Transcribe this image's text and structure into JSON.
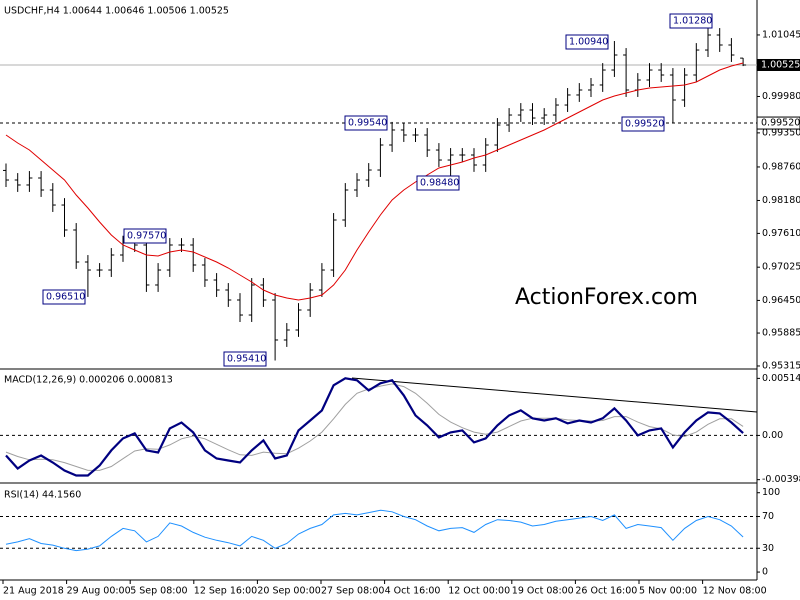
{
  "chart_data": [
    {
      "type": "ohlc",
      "title": "USDCHF,H4 1.00644 1.00646 1.00506 1.00525",
      "watermark": "ActionForex.com",
      "bar_color": "#000000",
      "open": [
        0.987,
        0.98534,
        0.98448,
        0.98569,
        0.98361,
        0.98101,
        0.97669,
        0.97115,
        0.96976,
        0.96976,
        0.97236,
        0.97496,
        0.97409,
        0.96717,
        0.96976,
        0.97409,
        0.97409,
        0.97063,
        0.96803,
        0.9663,
        0.96457,
        0.96197,
        0.96717,
        0.96457,
        0.95765,
        0.95938,
        0.96284,
        0.9663,
        0.96976,
        0.97842,
        0.98361,
        0.98534,
        0.98707,
        0.9914,
        0.994,
        0.99313,
        0.99313,
        0.99053,
        0.9888,
        0.98967,
        0.98967,
        0.98794,
        0.9914,
        0.99486,
        0.99659,
        0.99746,
        0.99607,
        0.99659,
        0.99832,
        1.00006,
        1.00092,
        1.00179,
        1.00438,
        1.00698,
        1.00092,
        1.00265,
        1.00438,
        1.00352,
        0.99919,
        1.00352,
        1.00784,
        1.01044,
        1.00871,
        1.00644
      ],
      "high": [
        0.9882,
        0.98654,
        0.98689,
        0.98689,
        0.98481,
        0.98221,
        0.97789,
        0.97235,
        0.97096,
        0.97356,
        0.9757,
        0.9755,
        0.97529,
        0.97096,
        0.97529,
        0.97529,
        0.97529,
        0.97183,
        0.96923,
        0.9675,
        0.96577,
        0.96837,
        0.96837,
        0.96577,
        0.96058,
        0.96404,
        0.9675,
        0.97096,
        0.97962,
        0.98481,
        0.98654,
        0.98827,
        0.9926,
        0.9954,
        0.9952,
        0.99433,
        0.99433,
        0.99173,
        0.99087,
        0.99087,
        0.99087,
        0.9926,
        0.99606,
        0.99779,
        0.99866,
        0.99866,
        0.99779,
        0.99952,
        1.00126,
        1.00212,
        1.00299,
        1.00558,
        1.0094,
        1.00818,
        1.00385,
        1.00558,
        1.00558,
        1.00472,
        1.00472,
        1.00904,
        1.0128,
        1.01164,
        1.00991,
        1.00646
      ],
      "low": [
        0.98414,
        0.98328,
        0.98328,
        0.98241,
        0.97981,
        0.97549,
        0.96995,
        0.9651,
        0.96856,
        0.96856,
        0.97116,
        0.97289,
        0.96597,
        0.96597,
        0.96856,
        0.97289,
        0.96943,
        0.96683,
        0.9651,
        0.96337,
        0.96077,
        0.96077,
        0.96337,
        0.9541,
        0.95645,
        0.95818,
        0.96164,
        0.9651,
        0.96856,
        0.97722,
        0.98241,
        0.98414,
        0.98587,
        0.9902,
        0.99193,
        0.99193,
        0.98933,
        0.9876,
        0.9848,
        0.98847,
        0.98674,
        0.98674,
        0.9902,
        0.99366,
        0.99539,
        0.99487,
        0.99487,
        0.99539,
        0.99712,
        0.99886,
        0.99972,
        1.00059,
        1.00318,
        0.99972,
        0.99972,
        1.00145,
        1.00232,
        0.9952,
        0.99799,
        1.00232,
        1.00664,
        1.00751,
        1.00578,
        1.00506
      ],
      "close": [
        0.98534,
        0.98448,
        0.98569,
        0.98361,
        0.98101,
        0.97669,
        0.97115,
        0.96976,
        0.96976,
        0.97236,
        0.97496,
        0.97409,
        0.96717,
        0.96976,
        0.97409,
        0.97409,
        0.97063,
        0.96803,
        0.9663,
        0.96457,
        0.96197,
        0.96717,
        0.96457,
        0.95765,
        0.95938,
        0.96284,
        0.9663,
        0.96976,
        0.97842,
        0.98361,
        0.98534,
        0.98707,
        0.9914,
        0.994,
        0.99313,
        0.99313,
        0.99053,
        0.9888,
        0.98967,
        0.98967,
        0.98794,
        0.9914,
        0.99486,
        0.99659,
        0.99746,
        0.99607,
        0.99659,
        0.99832,
        1.00006,
        1.00092,
        1.00179,
        1.00438,
        1.00698,
        1.00092,
        1.00265,
        1.00438,
        1.00352,
        0.99919,
        1.00352,
        1.00784,
        1.01044,
        1.00871,
        1.00698,
        1.00525
      ],
      "ma": {
        "color": "#e00000",
        "values": [
          0.99313,
          0.99175,
          0.99053,
          0.9888,
          0.98707,
          0.98534,
          0.98275,
          0.9805,
          0.97807,
          0.97582,
          0.97409,
          0.97322,
          0.97236,
          0.97219,
          0.97288,
          0.97322,
          0.97288,
          0.97201,
          0.97115,
          0.97011,
          0.9689,
          0.96769,
          0.9663,
          0.96544,
          0.96492,
          0.96457,
          0.96492,
          0.96544,
          0.96717,
          0.96976,
          0.97322,
          0.97634,
          0.97928,
          0.98188,
          0.98361,
          0.985,
          0.98621,
          0.98742,
          0.98794,
          0.98846,
          0.98915,
          0.98967,
          0.99053,
          0.9914,
          0.99227,
          0.99313,
          0.994,
          0.99504,
          0.99607,
          0.99711,
          0.99815,
          0.99919,
          0.99988,
          1.0004,
          1.00092,
          1.00127,
          1.00144,
          1.00161,
          1.00179,
          1.00231,
          1.00334,
          1.00438,
          1.00508,
          1.00559
        ]
      },
      "annotations": [
        "1.01280",
        "1.00940",
        "0.99540",
        "0.99520",
        "0.98480",
        "0.97570",
        "0.96510",
        "0.95410"
      ],
      "price_line": 1.00525,
      "level": {
        "value": 0.9952,
        "label": "0.99520"
      },
      "ylim": [
        0.9528,
        1.0165
      ],
      "yticks": [
        1.01045,
        {
          "value": 0.9998,
          "label": "0.99980"
        },
        {
          "value": 0.9935,
          "label": "0.99350"
        },
        {
          "value": 0.9876,
          "label": "0.98760"
        },
        {
          "value": 0.9818,
          "label": "0.98180"
        },
        {
          "value": 0.9761,
          "label": "0.97610"
        },
        0.97025,
        {
          "value": 0.9645,
          "label": "0.96450"
        },
        0.95885,
        0.95315
      ],
      "x_labels": [
        "21 Aug 2018",
        "29 Aug 00:00",
        "5 Sep 08:00",
        "12 Sep 16:00",
        "20 Sep 00:00",
        "27 Sep 08:00",
        "4 Oct 16:00",
        "12 Oct 00:00",
        "19 Oct 08:00",
        "26 Oct 16:00",
        "5 Nov 00:00",
        "12 Nov 08:00"
      ]
    },
    {
      "type": "macd",
      "title": "MACD(12,26,9) 0.000206 0.000813",
      "main": {
        "color": "#000080",
        "values": [
          -0.00181,
          -0.00298,
          -0.00226,
          -0.00181,
          -0.00244,
          -0.00316,
          -0.00361,
          -0.00361,
          -0.00271,
          -0.00135,
          -0.00027,
          0.00018,
          -0.00135,
          -0.00154,
          0.00063,
          0.00117,
          0.00027,
          -0.00135,
          -0.00208,
          -0.00226,
          -0.00244,
          -0.00135,
          -0.00045,
          -0.00208,
          -0.00181,
          0.00045,
          0.00135,
          0.00226,
          0.00452,
          0.00515,
          0.00497,
          0.00406,
          0.0047,
          0.00497,
          0.00361,
          0.00181,
          0.0009,
          -0.00018,
          0.00027,
          0.00045,
          -0.00063,
          -0.00027,
          0.0009,
          0.00181,
          0.00226,
          0.00154,
          0.00135,
          0.00154,
          0.00108,
          0.00135,
          0.00117,
          0.00154,
          0.00244,
          0.00135,
          0,
          0.00045,
          0.00063,
          -0.00108,
          0.00027,
          0.00135,
          0.00208,
          0.00199,
          0.00117,
          0.00021
        ]
      },
      "signal": {
        "color": "#a0a0a0",
        "values": [
          -0.0015,
          -0.0019,
          -0.0022,
          -0.00215,
          -0.0022,
          -0.00245,
          -0.0028,
          -0.00315,
          -0.00315,
          -0.0028,
          -0.0021,
          -0.0014,
          -0.0012,
          -0.00125,
          -0.00085,
          -0.0003,
          -5e-05,
          -0.0003,
          -0.0008,
          -0.0013,
          -0.00175,
          -0.0018,
          -0.0015,
          -0.0016,
          -0.00165,
          -0.00115,
          -0.0005,
          0.0003,
          0.0015,
          0.0028,
          0.0038,
          0.0042,
          0.00445,
          0.00465,
          0.0044,
          0.0038,
          0.0029,
          0.0019,
          0.0012,
          0.0007,
          0.0003,
          0.0001,
          0.0003,
          0.0008,
          0.0013,
          0.00155,
          0.00155,
          0.00155,
          0.0014,
          0.00135,
          0.0013,
          0.00135,
          0.0017,
          0.0017,
          0.0012,
          0.0008,
          0.0006,
          5e-05,
          -0.0001,
          0.0003,
          0.001,
          0.0015,
          0.0015,
          0.00081
        ]
      },
      "levels": [
        0
      ],
      "ylim": [
        -0.0042,
        0.0059
      ],
      "yticks": [
        0.005145,
        {
          "value": 0,
          "label": "0.00"
        },
        -0.003989
      ]
    },
    {
      "type": "rsi",
      "title": "RSI(14) 44.1560",
      "color": "#1e90ff",
      "values": [
        35,
        38,
        42,
        36,
        34,
        30,
        27,
        29,
        33,
        45,
        55,
        52,
        38,
        45,
        62,
        58,
        50,
        44,
        40,
        37,
        33,
        45,
        40,
        30,
        36,
        48,
        55,
        60,
        72,
        74,
        72,
        75,
        78,
        76,
        70,
        66,
        58,
        52,
        55,
        56,
        50,
        60,
        66,
        65,
        63,
        58,
        60,
        64,
        66,
        68,
        70,
        65,
        72,
        55,
        60,
        58,
        56,
        40,
        55,
        65,
        70,
        66,
        58,
        44.156
      ],
      "levels": [
        70,
        30
      ],
      "ylim": [
        -10,
        111
      ],
      "yticks": [
        100,
        70,
        30,
        0
      ]
    }
  ]
}
